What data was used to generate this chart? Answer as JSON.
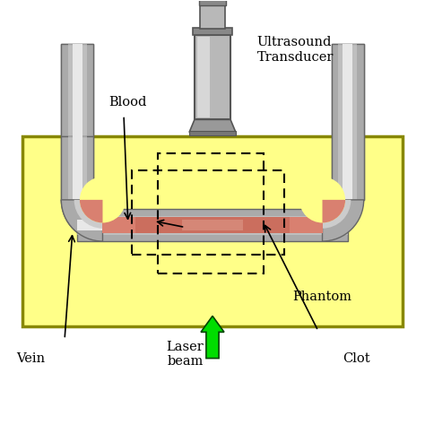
{
  "background_color": "#ffffff",
  "phantom_color": "#ffff88",
  "phantom_border": "#888800",
  "blood_color": "#d98070",
  "clot_color": "#c06050",
  "clot_highlight": "#e0a090",
  "dashed_color": "#000000",
  "green_arrow": "#00dd00",
  "green_arrow_edge": "#004400",
  "text_color": "#000000",
  "tube_outer": "#aaaaaa",
  "tube_mid": "#cccccc",
  "tube_inner": "#e8e8e8",
  "tube_edge": "#666666",
  "trans_body": "#b8b8b8",
  "trans_light": "#e0e0e0",
  "trans_dark": "#888888",
  "trans_edge": "#555555",
  "trans_tip": "#999999",
  "trans_ring": "#777777",
  "labels": {
    "ultrasound": "Ultrasound\nTransducer",
    "blood": "Blood",
    "phantom": "Phantom",
    "vein": "Vein",
    "clot": "Clot",
    "laser": "Laser\nbeam"
  },
  "figsize": [
    4.74,
    4.74
  ],
  "dpi": 100
}
